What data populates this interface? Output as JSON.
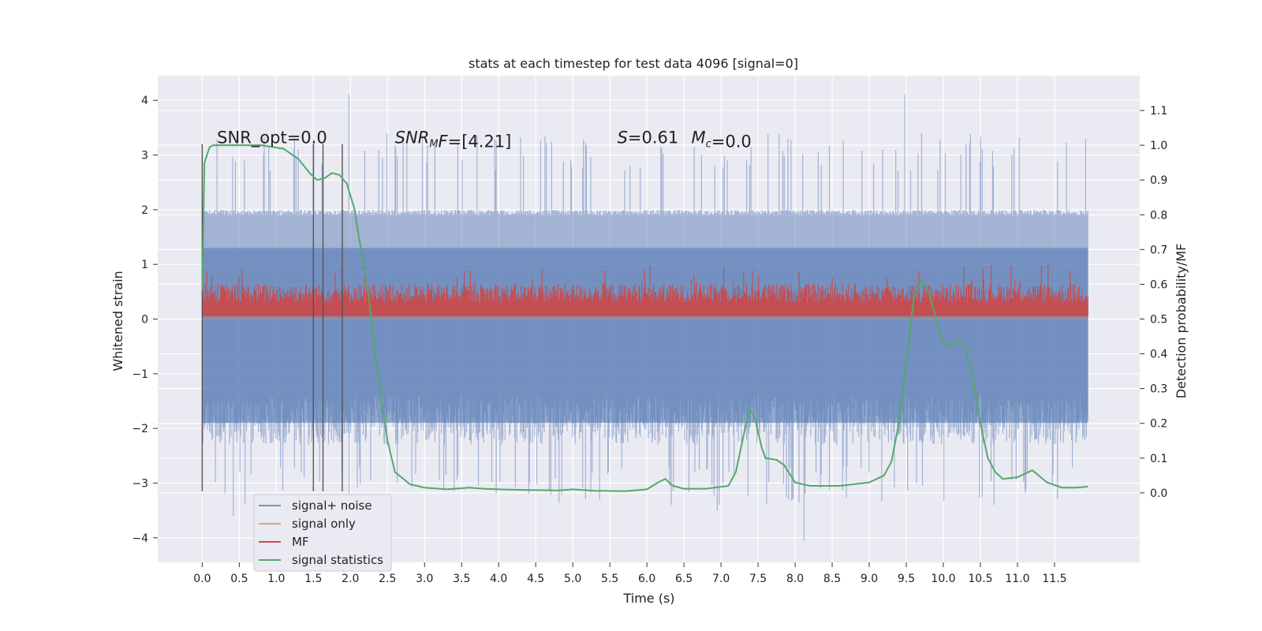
{
  "chart_data": {
    "type": "line",
    "title": "stats at each timestep for test data 4096 [signal=0]",
    "xlabel": "Time (s)",
    "ylabel": "Whitened strain",
    "y2label": "Detection probability/MF",
    "xlim": [
      -0.6,
      12.65
    ],
    "ylim": [
      -4.45,
      4.45
    ],
    "y2lim": [
      -0.2,
      1.2
    ],
    "grid": true,
    "legend_position": "bottom-left",
    "x_ticks": [
      "0.0",
      "0.5",
      "1.0",
      "1.5",
      "2.0",
      "2.5",
      "3.0",
      "3.5",
      "4.0",
      "4.5",
      "5.0",
      "5.5",
      "6.0",
      "6.5",
      "7.0",
      "7.5",
      "8.0",
      "8.5",
      "9.0",
      "9.5",
      "10.0",
      "10.5",
      "11.0",
      "11.5"
    ],
    "y_ticks": [
      "4",
      "3",
      "2",
      "1",
      "0",
      "−1",
      "−2",
      "−3",
      "−4"
    ],
    "y2_ticks": [
      "1.1",
      "1.0",
      "0.9",
      "0.8",
      "0.7",
      "0.6",
      "0.5",
      "0.4",
      "0.3",
      "0.2",
      "0.1",
      "0.0"
    ],
    "annotations": [
      {
        "text": "SNR_opt=0.0",
        "x": 0.2,
        "y": 3.3
      },
      {
        "text_italic": "SNR",
        "text_sub": "M",
        "text_italic2": "F",
        "text": "=[4.21]",
        "x": 2.6,
        "y": 3.3
      },
      {
        "text_italic": "S",
        "text": "=0.61",
        "x": 5.6,
        "y": 3.3
      },
      {
        "text_italic": "M",
        "text_sub": "c",
        "text": "=0.0",
        "x": 6.6,
        "y": 3.3
      }
    ],
    "vertical_lines": [
      0.0,
      1.5,
      1.63,
      1.89
    ],
    "vertical_line_range": [
      -3.15,
      3.2
    ],
    "series": [
      {
        "name": "signal+ noise",
        "color": "#4c72b0",
        "axis": "left",
        "x_range": [
          0.0,
          11.95
        ],
        "band_lower": [
          -1.9,
          -2.3,
          -2.4,
          -2.7
        ],
        "band_upper": [
          1.3,
          1.9,
          2.0,
          2.7
        ],
        "approx_min": -4.05,
        "approx_max": 4.1,
        "samples": 1200
      },
      {
        "name": "signal only",
        "color": "#dd8452",
        "axis": "left",
        "x": [
          0.0,
          11.95
        ],
        "y": [
          0.0,
          0.0
        ]
      },
      {
        "name": "MF",
        "color": "#c44e52",
        "axis": "left",
        "x_range": [
          0.0,
          11.95
        ],
        "baseline": 0.05,
        "band_upper": [
          0.3,
          0.65,
          1.0
        ],
        "samples": 1200
      },
      {
        "name": "signal statistics",
        "color": "#55a868",
        "axis": "right",
        "x": [
          0.0,
          0.03,
          0.1,
          0.15,
          0.2,
          0.3,
          0.5,
          0.8,
          1.1,
          1.3,
          1.45,
          1.55,
          1.65,
          1.75,
          1.85,
          1.95,
          2.05,
          2.15,
          2.25,
          2.3,
          2.35,
          2.4,
          2.5,
          2.6,
          2.8,
          3.0,
          3.3,
          3.6,
          3.8,
          4.0,
          4.4,
          4.8,
          5.0,
          5.3,
          5.7,
          6.0,
          6.15,
          6.25,
          6.35,
          6.5,
          6.8,
          7.1,
          7.2,
          7.3,
          7.38,
          7.45,
          7.55,
          7.6,
          7.75,
          7.85,
          8.0,
          8.2,
          8.6,
          9.0,
          9.2,
          9.3,
          9.4,
          9.5,
          9.6,
          9.7,
          9.8,
          9.9,
          10.0,
          10.1,
          10.2,
          10.3,
          10.4,
          10.5,
          10.6,
          10.7,
          10.8,
          11.0,
          11.2,
          11.4,
          11.6,
          11.8,
          11.95
        ],
        "y": [
          0.58,
          0.95,
          0.995,
          1.0,
          1.0,
          1.0,
          1.0,
          1.0,
          0.99,
          0.96,
          0.92,
          0.9,
          0.905,
          0.92,
          0.915,
          0.89,
          0.82,
          0.69,
          0.56,
          0.46,
          0.38,
          0.3,
          0.15,
          0.06,
          0.025,
          0.015,
          0.01,
          0.015,
          0.012,
          0.01,
          0.008,
          0.007,
          0.01,
          0.006,
          0.005,
          0.01,
          0.03,
          0.04,
          0.02,
          0.012,
          0.012,
          0.02,
          0.06,
          0.16,
          0.24,
          0.22,
          0.13,
          0.1,
          0.095,
          0.08,
          0.03,
          0.02,
          0.02,
          0.03,
          0.05,
          0.09,
          0.2,
          0.38,
          0.56,
          0.61,
          0.58,
          0.5,
          0.43,
          0.42,
          0.44,
          0.42,
          0.33,
          0.2,
          0.1,
          0.06,
          0.04,
          0.045,
          0.065,
          0.03,
          0.015,
          0.015,
          0.018
        ]
      }
    ]
  }
}
